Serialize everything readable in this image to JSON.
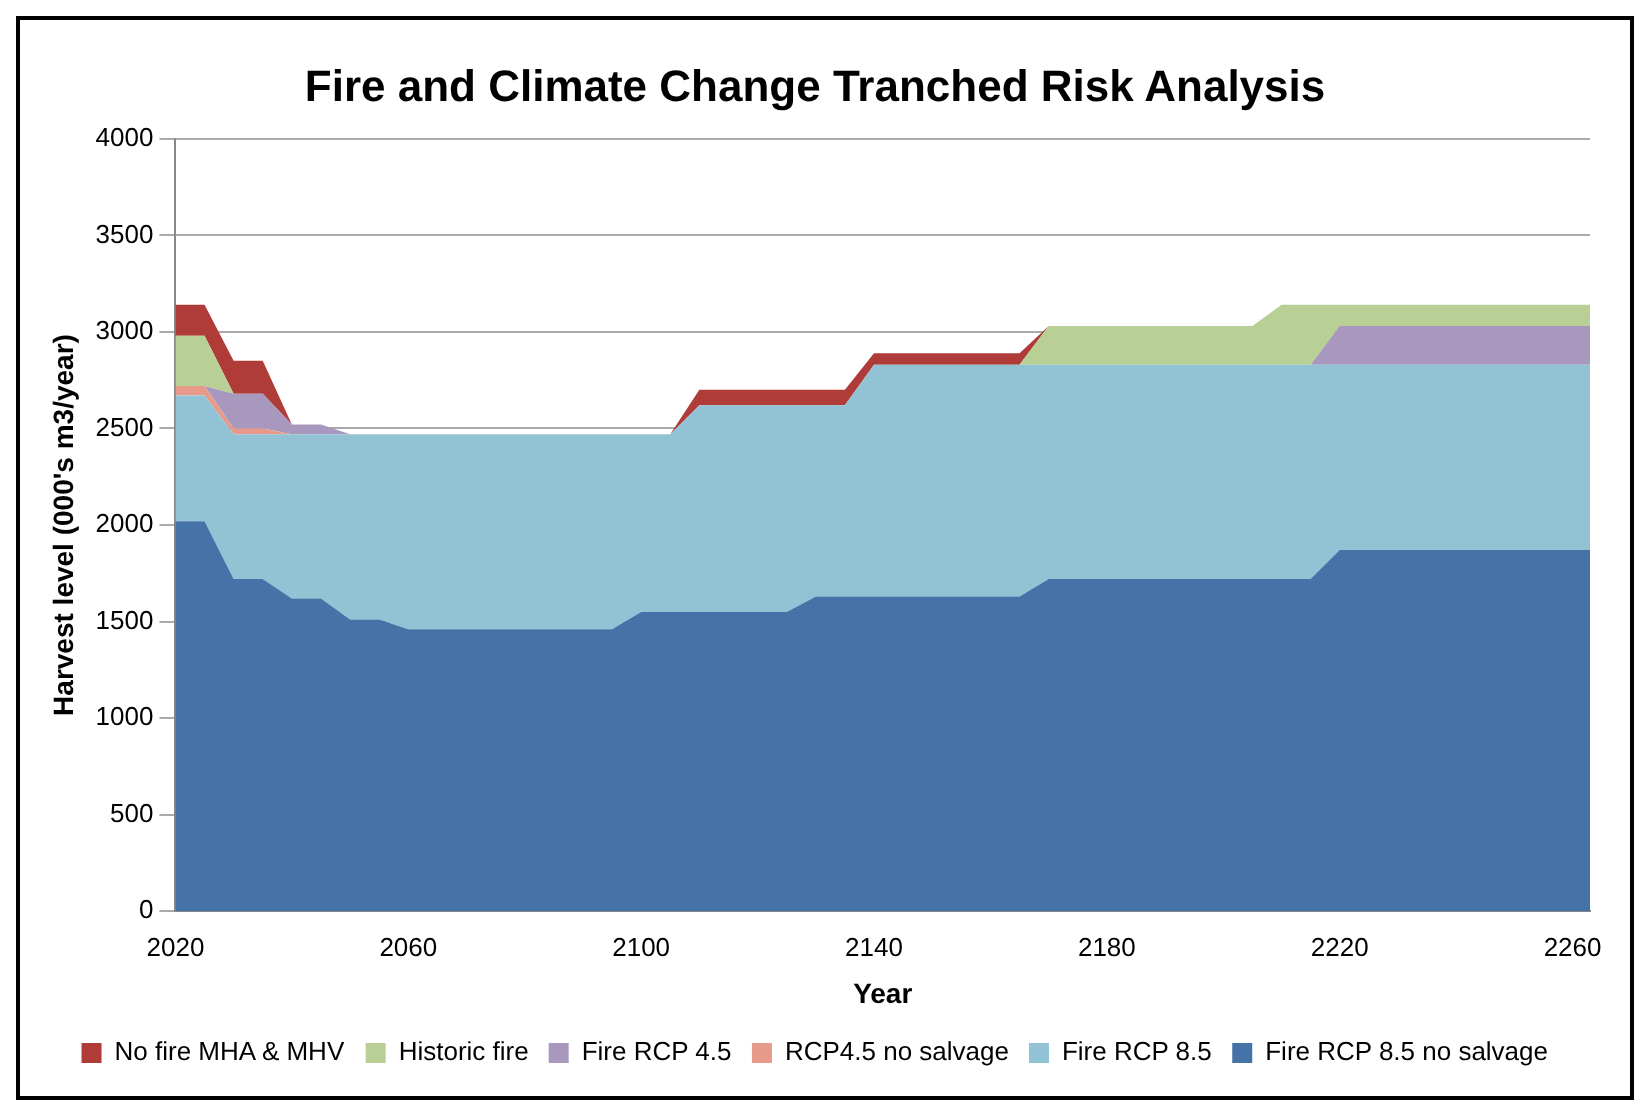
{
  "chart_data": {
    "type": "area",
    "stacked": true,
    "title": "Fire and Climate Change Tranched Risk Analysis",
    "xlabel": "Year",
    "ylabel": "Harvest level (000's m3/year)",
    "x": [
      2020,
      2025,
      2030,
      2035,
      2040,
      2045,
      2050,
      2055,
      2060,
      2065,
      2070,
      2075,
      2080,
      2085,
      2090,
      2095,
      2100,
      2105,
      2110,
      2115,
      2120,
      2125,
      2130,
      2135,
      2140,
      2145,
      2150,
      2155,
      2160,
      2165,
      2170,
      2175,
      2180,
      2185,
      2190,
      2195,
      2200,
      2205,
      2210,
      2215,
      2220,
      2225,
      2230,
      2235,
      2240,
      2245,
      2250,
      2255,
      2260,
      2263
    ],
    "series": [
      {
        "name": "Fire RCP 8.5 no salvage",
        "color": "#4572a7",
        "values": [
          2020,
          2020,
          1720,
          1720,
          1620,
          1620,
          1510,
          1510,
          1460,
          1460,
          1460,
          1460,
          1460,
          1460,
          1460,
          1460,
          1550,
          1550,
          1550,
          1550,
          1550,
          1550,
          1630,
          1630,
          1630,
          1630,
          1630,
          1630,
          1630,
          1630,
          1720,
          1720,
          1720,
          1720,
          1720,
          1720,
          1720,
          1720,
          1720,
          1720,
          1870,
          1870,
          1870,
          1870,
          1870,
          1870,
          1870,
          1870,
          1870,
          1870
        ]
      },
      {
        "name": "Fire RCP 8.5",
        "color": "#92c3d4",
        "values": [
          650,
          650,
          750,
          750,
          850,
          850,
          960,
          960,
          1010,
          1010,
          1010,
          1010,
          1010,
          1010,
          1010,
          1010,
          920,
          920,
          1070,
          1070,
          1070,
          1070,
          990,
          990,
          1200,
          1200,
          1200,
          1200,
          1200,
          1200,
          1110,
          1110,
          1110,
          1110,
          1110,
          1110,
          1110,
          1110,
          1110,
          1110,
          960,
          960,
          960,
          960,
          960,
          960,
          960,
          960,
          960,
          960
        ]
      },
      {
        "name": "RCP4.5 no salvage",
        "color": "#e89a8a",
        "values": [
          50,
          50,
          30,
          30,
          0,
          0,
          0,
          0,
          0,
          0,
          0,
          0,
          0,
          0,
          0,
          0,
          0,
          0,
          0,
          0,
          0,
          0,
          0,
          0,
          0,
          0,
          0,
          0,
          0,
          0,
          0,
          0,
          0,
          0,
          0,
          0,
          0,
          0,
          0,
          0,
          0,
          0,
          0,
          0,
          0,
          0,
          0,
          0,
          0,
          0
        ]
      },
      {
        "name": "Fire RCP 4.5",
        "color": "#a898be",
        "values": [
          0,
          0,
          180,
          180,
          50,
          50,
          0,
          0,
          0,
          0,
          0,
          0,
          0,
          0,
          0,
          0,
          0,
          0,
          0,
          0,
          0,
          0,
          0,
          0,
          0,
          0,
          0,
          0,
          0,
          0,
          0,
          0,
          0,
          0,
          0,
          0,
          0,
          0,
          0,
          0,
          200,
          200,
          200,
          200,
          200,
          200,
          200,
          200,
          200,
          200
        ]
      },
      {
        "name": "Historic fire",
        "color": "#b8d095",
        "values": [
          260,
          260,
          0,
          0,
          0,
          0,
          0,
          0,
          0,
          0,
          0,
          0,
          0,
          0,
          0,
          0,
          0,
          0,
          0,
          0,
          0,
          0,
          0,
          0,
          0,
          0,
          0,
          0,
          0,
          0,
          200,
          200,
          200,
          200,
          200,
          200,
          200,
          200,
          310,
          310,
          110,
          110,
          110,
          110,
          110,
          110,
          110,
          110,
          110,
          110
        ]
      },
      {
        "name": "No fire MHA & MHV",
        "color": "#b03c3a",
        "values": [
          160,
          160,
          170,
          170,
          0,
          null,
          null,
          null,
          null,
          null,
          null,
          null,
          null,
          null,
          null,
          null,
          null,
          0,
          80,
          80,
          80,
          80,
          80,
          80,
          60,
          60,
          60,
          60,
          60,
          60,
          0,
          null,
          null,
          null,
          null,
          null,
          null,
          null,
          null,
          null,
          null,
          null,
          null,
          null,
          null,
          null,
          null,
          null,
          null,
          null
        ]
      }
    ],
    "xlim": [
      2020,
      2263
    ],
    "xticks": [
      2020,
      2060,
      2100,
      2140,
      2180,
      2220,
      2260
    ],
    "ylim": [
      0,
      4000
    ],
    "yticks": [
      0,
      500,
      1000,
      1500,
      2000,
      2500,
      3000,
      3500,
      4000
    ],
    "grid": "y",
    "legend": "bottom"
  }
}
